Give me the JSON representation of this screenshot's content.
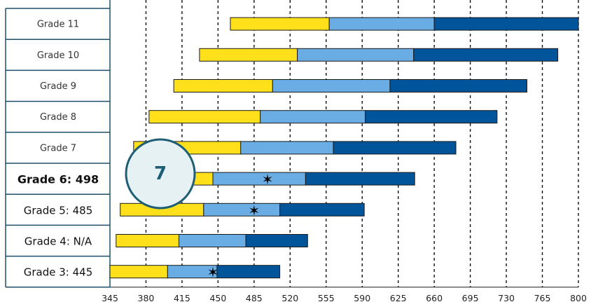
{
  "chart_data": {
    "type": "bar",
    "subtype": "horizontal-range-stacked",
    "title": "",
    "xlabel": "",
    "ylabel": "",
    "xlim": [
      345,
      800
    ],
    "x_ticks": [
      "345",
      "380",
      "415",
      "450",
      "485",
      "520",
      "555",
      "590",
      "625",
      "660",
      "695",
      "730",
      "765",
      "800"
    ],
    "grid": "dashed-vertical",
    "colors": {
      "band1": "#ffe01b",
      "band2": "#6aade4",
      "band3": "#00549a",
      "row_border": "#1f4e6b",
      "badge_fill": "#e6f1f4",
      "badge_stroke": "#1f5f75",
      "badge_text": "#1f5f75"
    },
    "grades": [
      {
        "label": "Grade 11",
        "bold": false,
        "emphasis": false,
        "segments": [
          462,
          558,
          660,
          800
        ],
        "score": null
      },
      {
        "label": "Grade 10",
        "bold": false,
        "emphasis": false,
        "segments": [
          432,
          527,
          640,
          780
        ],
        "score": null
      },
      {
        "label": "Grade 9",
        "bold": false,
        "emphasis": false,
        "segments": [
          407,
          503,
          617,
          750
        ],
        "score": null
      },
      {
        "label": "Grade 8",
        "bold": false,
        "emphasis": false,
        "segments": [
          383,
          491,
          593,
          721
        ],
        "score": null
      },
      {
        "label": "Grade 7",
        "bold": false,
        "emphasis": false,
        "segments": [
          368,
          472,
          562,
          681
        ],
        "score": null
      },
      {
        "label": "Grade 6: 498",
        "bold": true,
        "emphasis": true,
        "segments": [
          370,
          445,
          535,
          641
        ],
        "score": 498
      },
      {
        "label": "Grade 5: 485",
        "bold": false,
        "emphasis": true,
        "segments": [
          355,
          436,
          510,
          592
        ],
        "score": 485
      },
      {
        "label": "Grade 4: N/A",
        "bold": false,
        "emphasis": true,
        "segments": [
          351,
          412,
          477,
          537
        ],
        "score": null
      },
      {
        "label": "Grade 3: 445",
        "bold": false,
        "emphasis": true,
        "segments": [
          345,
          401,
          449,
          510
        ],
        "score": 445
      }
    ],
    "badge": {
      "text": "7"
    }
  }
}
